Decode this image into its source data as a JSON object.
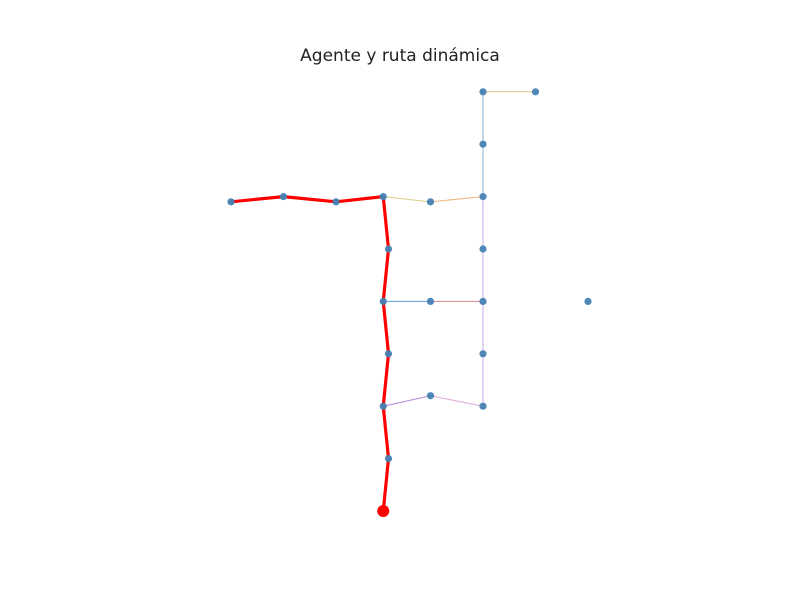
{
  "title": "Agente y ruta dinámica",
  "colors": {
    "node": "#4682b4",
    "route": "#ff0000",
    "agent": "#ff0000"
  },
  "graph": {
    "nodes": [
      {
        "id": "n1",
        "x": 0.0,
        "y": 5.9
      },
      {
        "id": "n2",
        "x": 1.0,
        "y": 6.0
      },
      {
        "id": "n3",
        "x": 2.0,
        "y": 5.9
      },
      {
        "id": "n4",
        "x": 2.9,
        "y": 6.0
      },
      {
        "id": "n5",
        "x": 3.8,
        "y": 5.9
      },
      {
        "id": "n6",
        "x": 4.8,
        "y": 6.0
      },
      {
        "id": "n7",
        "x": 4.8,
        "y": 7.0
      },
      {
        "id": "n8",
        "x": 4.8,
        "y": 8.0
      },
      {
        "id": "n9",
        "x": 5.8,
        "y": 8.0
      },
      {
        "id": "n10",
        "x": 3.0,
        "y": 5.0
      },
      {
        "id": "n11",
        "x": 4.8,
        "y": 5.0
      },
      {
        "id": "n12",
        "x": 2.9,
        "y": 4.0
      },
      {
        "id": "n13",
        "x": 3.8,
        "y": 4.0
      },
      {
        "id": "n14",
        "x": 4.8,
        "y": 4.0
      },
      {
        "id": "n15",
        "x": 6.8,
        "y": 4.0
      },
      {
        "id": "n16",
        "x": 3.0,
        "y": 3.0
      },
      {
        "id": "n17",
        "x": 4.8,
        "y": 3.0
      },
      {
        "id": "n18",
        "x": 2.9,
        "y": 2.0
      },
      {
        "id": "n19",
        "x": 3.8,
        "y": 2.2
      },
      {
        "id": "n20",
        "x": 4.8,
        "y": 2.0
      },
      {
        "id": "n21",
        "x": 3.0,
        "y": 1.0
      }
    ],
    "edges": [
      {
        "from": "n8",
        "to": "n9",
        "color": "#d9c27a"
      },
      {
        "from": "n8",
        "to": "n7",
        "color": "#8ab4d4"
      },
      {
        "from": "n7",
        "to": "n6",
        "color": "#8ab4d4"
      },
      {
        "from": "n4",
        "to": "n5",
        "color": "#d8cf8a"
      },
      {
        "from": "n5",
        "to": "n6",
        "color": "#f0b27a"
      },
      {
        "from": "n6",
        "to": "n11",
        "color": "#c9a8e8"
      },
      {
        "from": "n11",
        "to": "n14",
        "color": "#c9a8e8"
      },
      {
        "from": "n12",
        "to": "n13",
        "color": "#5b9bd5"
      },
      {
        "from": "n13",
        "to": "n14",
        "color": "#d98a8a"
      },
      {
        "from": "n14",
        "to": "n17",
        "color": "#c9a8e8"
      },
      {
        "from": "n17",
        "to": "n20",
        "color": "#c9a8e8"
      },
      {
        "from": "n18",
        "to": "n19",
        "color": "#b58ad9"
      },
      {
        "from": "n19",
        "to": "n20",
        "color": "#e0a8d8"
      }
    ],
    "route": [
      "n1",
      "n2",
      "n3",
      "n4",
      "n10",
      "n12",
      "n16",
      "n18",
      "n21",
      "agent"
    ],
    "agent": {
      "x": 2.9,
      "y": 0.0
    }
  }
}
